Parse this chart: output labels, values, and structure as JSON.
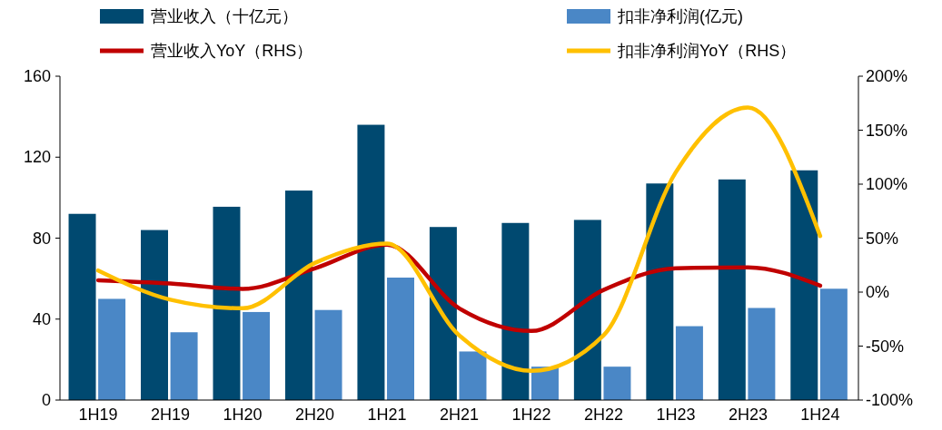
{
  "chart_data": {
    "type": "bar",
    "categories": [
      "1H19",
      "2H19",
      "1H20",
      "2H20",
      "1H21",
      "2H21",
      "1H22",
      "2H22",
      "1H23",
      "2H23",
      "1H24"
    ],
    "series": [
      {
        "name": "营业收入（十亿元）",
        "color": "#004970",
        "values": [
          92,
          84,
          95.5,
          103.5,
          136,
          85.5,
          87.5,
          89,
          107,
          109,
          113.5
        ]
      },
      {
        "name": "扣非净利润(亿元)",
        "color": "#4a87c6",
        "values": [
          50,
          33.5,
          43.5,
          44.5,
          60.5,
          24,
          16.5,
          16.5,
          36.5,
          45.5,
          55
        ]
      },
      {
        "name": "营业收入YoY（RHS）",
        "type": "line",
        "axis": "y2",
        "color": "#c00000",
        "values": [
          11,
          8,
          3,
          22,
          44,
          -15,
          -36,
          2,
          22,
          23,
          6
        ]
      },
      {
        "name": "扣非净利润YoY（RHS）",
        "type": "line",
        "axis": "y2",
        "color": "#ffc000",
        "values": [
          20,
          -7,
          -15,
          27,
          45,
          -40,
          -73,
          -40,
          111,
          171,
          52
        ]
      }
    ],
    "ylim": [
      0,
      160
    ],
    "yticks": [
      0,
      40,
      80,
      120,
      160
    ],
    "y2lim": [
      -100,
      200
    ],
    "y2ticks": [
      {
        "value": -100,
        "label": "-100%"
      },
      {
        "value": -50,
        "label": "-50%"
      },
      {
        "value": 0,
        "label": "0%"
      },
      {
        "value": 50,
        "label": "50%"
      },
      {
        "value": 100,
        "label": "100%"
      },
      {
        "value": 150,
        "label": "150%"
      },
      {
        "value": 200,
        "label": "200%"
      }
    ],
    "legend": "top",
    "grid": false,
    "marker": "none",
    "line_style": "solid"
  }
}
